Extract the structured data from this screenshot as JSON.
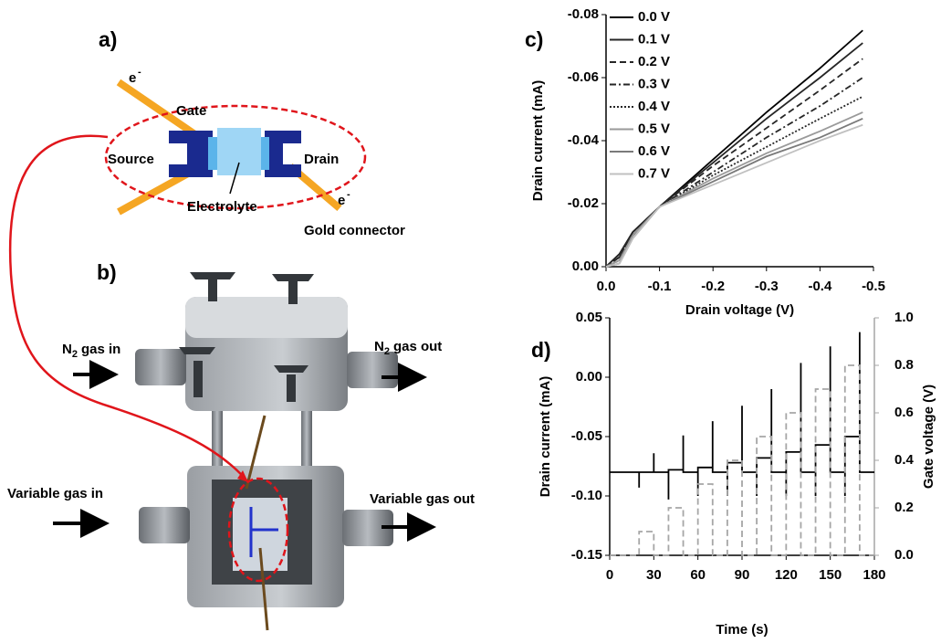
{
  "diagram": {
    "panel_a": "a)",
    "panel_b": "b)",
    "gate": "Gate",
    "source": "Source",
    "drain": "Drain",
    "electrolyte": "Electrolyte",
    "gold_connector": "Gold connector",
    "electron": "e",
    "electron_charge": "-",
    "n2_in": [
      "N",
      "2",
      "gas in"
    ],
    "n2_out": [
      "N",
      "2",
      "gas out"
    ],
    "variable_in": "Variable gas in",
    "variable_out": "Variable gas out"
  },
  "chart_data": [
    {
      "type": "line",
      "label": "c)",
      "xlabel": "Drain voltage (V)",
      "ylabel": "Drain current (mA)",
      "x": [
        0,
        -0.025,
        -0.05,
        -0.1,
        -0.2,
        -0.3,
        -0.4,
        -0.48
      ],
      "xlim": [
        0,
        -0.5
      ],
      "xticks": [
        {
          "value": 0,
          "label": "0.0"
        },
        -0.1,
        -0.2,
        -0.3,
        -0.4,
        -0.5
      ],
      "ylim": [
        0,
        -0.08
      ],
      "yticks": [
        {
          "value": 0,
          "label": "0.00"
        },
        -0.02,
        -0.04,
        -0.06,
        -0.08
      ],
      "legend": "top-left",
      "series": [
        {
          "name": "0.0 V",
          "color": "#000000",
          "dash": "solid",
          "values": [
            0,
            -0.004,
            -0.011,
            -0.019,
            -0.034,
            -0.049,
            -0.063,
            -0.075
          ]
        },
        {
          "name": "0.1 V",
          "color": "#262626",
          "dash": "solid",
          "values": [
            0,
            -0.004,
            -0.011,
            -0.019,
            -0.033,
            -0.047,
            -0.06,
            -0.071
          ]
        },
        {
          "name": "0.2 V",
          "color": "#262626",
          "dash": "dash",
          "values": [
            0,
            -0.003,
            -0.01,
            -0.019,
            -0.032,
            -0.044,
            -0.056,
            -0.066
          ]
        },
        {
          "name": "0.3 V",
          "color": "#262626",
          "dash": "dashdot",
          "values": [
            0,
            -0.003,
            -0.01,
            -0.019,
            -0.03,
            -0.041,
            -0.051,
            -0.06
          ]
        },
        {
          "name": "0.4 V",
          "color": "#262626",
          "dash": "dot",
          "values": [
            0,
            -0.002,
            -0.01,
            -0.019,
            -0.029,
            -0.038,
            -0.047,
            -0.054
          ]
        },
        {
          "name": "0.5 V",
          "color": "#9a9a9a",
          "dash": "solid",
          "values": [
            0,
            -0.002,
            -0.01,
            -0.019,
            -0.028,
            -0.036,
            -0.043,
            -0.049
          ]
        },
        {
          "name": "0.6 V",
          "color": "#7a7a7a",
          "dash": "solid",
          "values": [
            0,
            -0.001,
            -0.009,
            -0.019,
            -0.027,
            -0.035,
            -0.041,
            -0.047
          ]
        },
        {
          "name": "0.7 V",
          "color": "#c0c0c0",
          "dash": "solid",
          "values": [
            0,
            -0.001,
            -0.009,
            -0.019,
            -0.026,
            -0.033,
            -0.04,
            -0.045
          ]
        }
      ]
    },
    {
      "type": "line",
      "label": "d)",
      "xlabel": "Time (s)",
      "ylabel": "Drain current (mA)",
      "y2label": "Gate voltage (V)",
      "y2color": "#a6a6a6",
      "x": [
        0,
        20,
        20,
        20,
        30,
        30,
        30,
        40,
        40,
        40,
        50,
        50,
        50,
        60,
        60,
        60,
        70,
        70,
        70,
        80,
        80,
        80,
        90,
        90,
        90,
        100,
        100,
        100,
        110,
        110,
        110,
        120,
        120,
        120,
        130,
        130,
        130,
        140,
        140,
        140,
        150,
        150,
        150,
        160,
        160,
        160,
        170,
        170,
        170,
        180
      ],
      "xlim": [
        0,
        180
      ],
      "xticks": [
        0,
        30,
        60,
        90,
        120,
        150,
        180
      ],
      "ylim": [
        -0.15,
        0.05
      ],
      "yticks": [
        -0.15,
        {
          "value": -0.1,
          "label": "-0.10"
        },
        -0.05,
        {
          "value": 0,
          "label": "0.00"
        },
        0.05
      ],
      "y2lim": [
        0,
        1
      ],
      "y2ticks": [
        {
          "value": 0,
          "label": "0.0"
        },
        0.2,
        0.4,
        0.6,
        0.8,
        {
          "value": 1,
          "label": "1.0"
        }
      ],
      "series": [
        {
          "color": "#000000",
          "dash": "solid",
          "values": [
            -0.08,
            -0.08,
            -0.093,
            -0.08,
            -0.08,
            -0.064,
            -0.08,
            -0.08,
            -0.103,
            -0.078,
            -0.078,
            -0.049,
            -0.08,
            -0.08,
            -0.1,
            -0.076,
            -0.076,
            -0.037,
            -0.08,
            -0.08,
            -0.1,
            -0.072,
            -0.072,
            -0.024,
            -0.08,
            -0.08,
            -0.1,
            -0.068,
            -0.068,
            -0.01,
            -0.08,
            -0.08,
            -0.1,
            -0.063,
            -0.063,
            0.012,
            -0.08,
            -0.08,
            -0.1,
            -0.057,
            -0.057,
            0.026,
            -0.08,
            -0.08,
            -0.1,
            -0.05,
            -0.05,
            0.038,
            -0.08,
            -0.08
          ]
        },
        {
          "color": "#a6a6a6",
          "dash": "dash",
          "axis": "y2",
          "values": [
            0,
            0,
            0.1,
            0.1,
            0.1,
            0,
            0,
            0,
            0.2,
            0.2,
            0.2,
            0,
            0,
            0,
            0.3,
            0.3,
            0.3,
            0,
            0,
            0,
            0.4,
            0.4,
            0.4,
            0,
            0,
            0,
            0.5,
            0.5,
            0.5,
            0,
            0,
            0,
            0.6,
            0.6,
            0.6,
            0,
            0,
            0,
            0.7,
            0.7,
            0.7,
            0,
            0,
            0,
            0.8,
            0.8,
            0.8,
            0,
            0,
            0
          ]
        }
      ]
    }
  ]
}
